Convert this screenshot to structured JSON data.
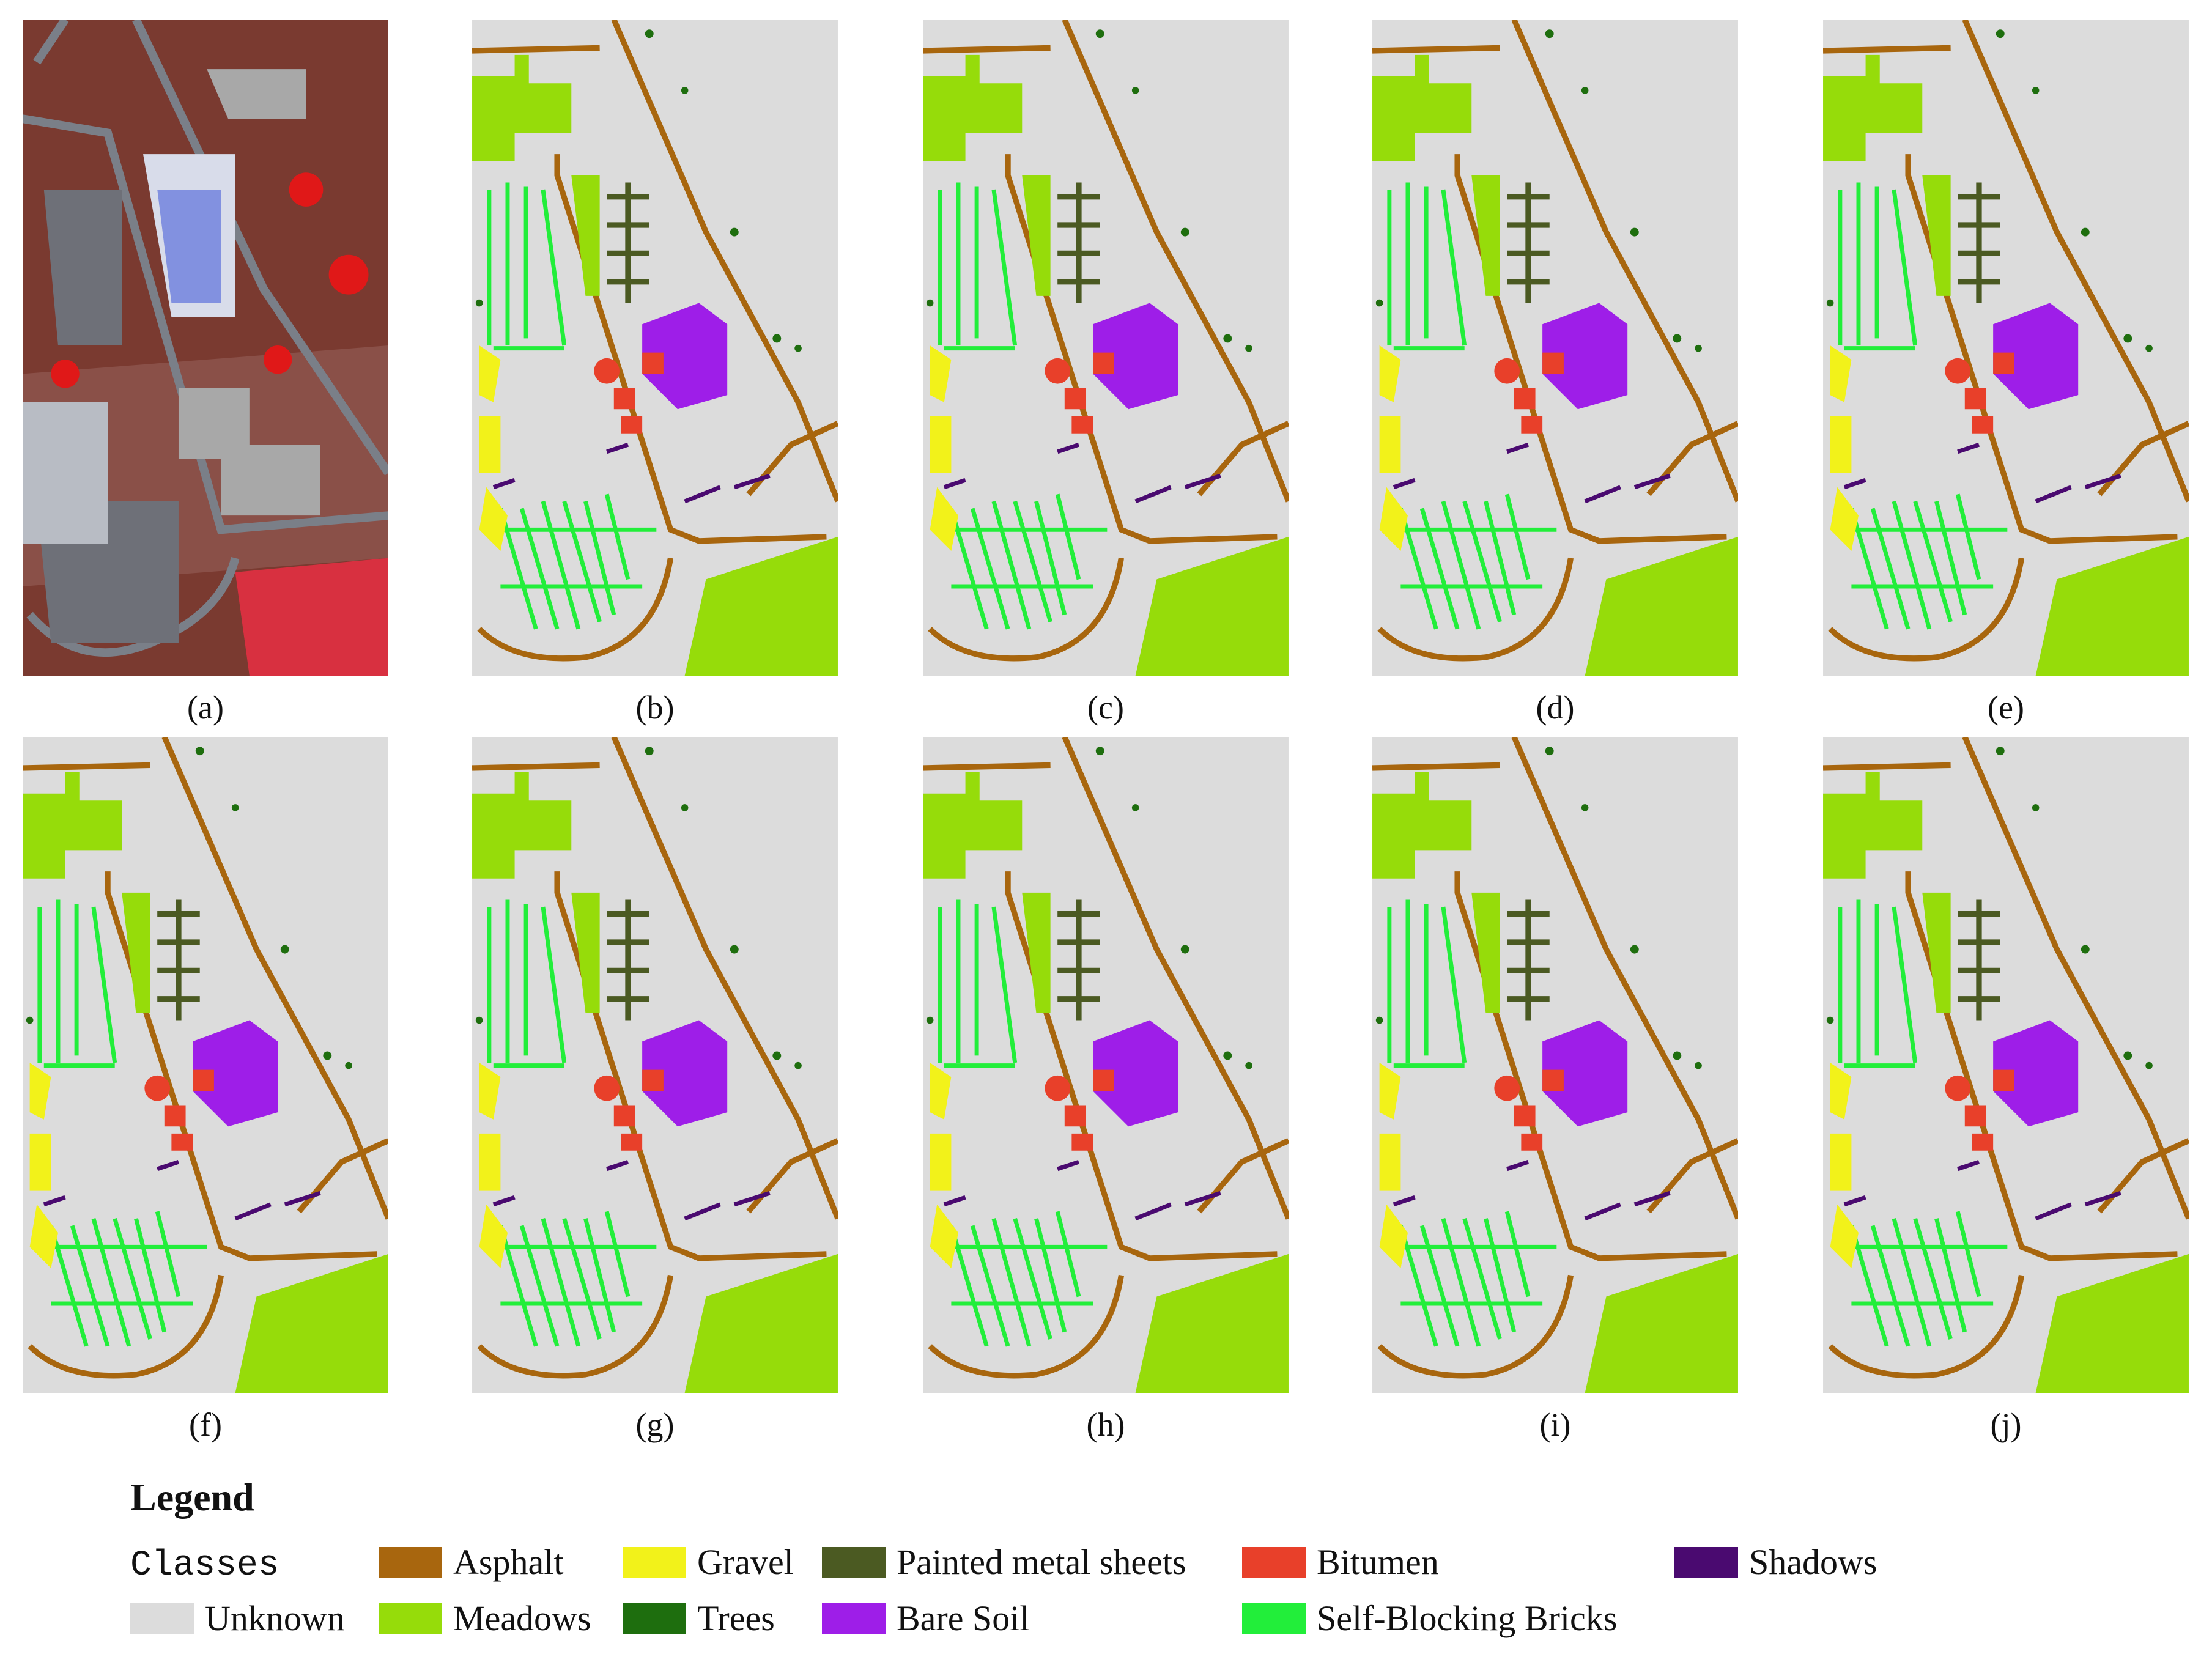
{
  "panels": [
    {
      "label": "(a)"
    },
    {
      "label": "(b)"
    },
    {
      "label": "(c)"
    },
    {
      "label": "(d)"
    },
    {
      "label": "(e)"
    },
    {
      "label": "(f)"
    },
    {
      "label": "(g)"
    },
    {
      "label": "(h)"
    },
    {
      "label": "(i)"
    },
    {
      "label": "(j)"
    }
  ],
  "legend": {
    "title": "Legend",
    "classes_label": "Classes",
    "rows": [
      [
        {
          "name": "Asphalt",
          "color": "#a8660e"
        },
        {
          "name": "Gravel",
          "color": "#f2f21a"
        },
        {
          "name": "Painted metal sheets",
          "color": "#4b5a22"
        },
        {
          "name": "Bitumen",
          "color": "#e8402a"
        },
        {
          "name": "Shadows",
          "color": "#4a0a70"
        }
      ],
      [
        {
          "name": "Unknown",
          "color": "#dcdcdc"
        },
        {
          "name": "Meadows",
          "color": "#96dc0a"
        },
        {
          "name": "Trees",
          "color": "#1e6e0e"
        },
        {
          "name": "Bare Soil",
          "color": "#9e1ee8"
        },
        {
          "name": "Self-Blocking Bricks",
          "color": "#22ee3a"
        }
      ]
    ]
  }
}
